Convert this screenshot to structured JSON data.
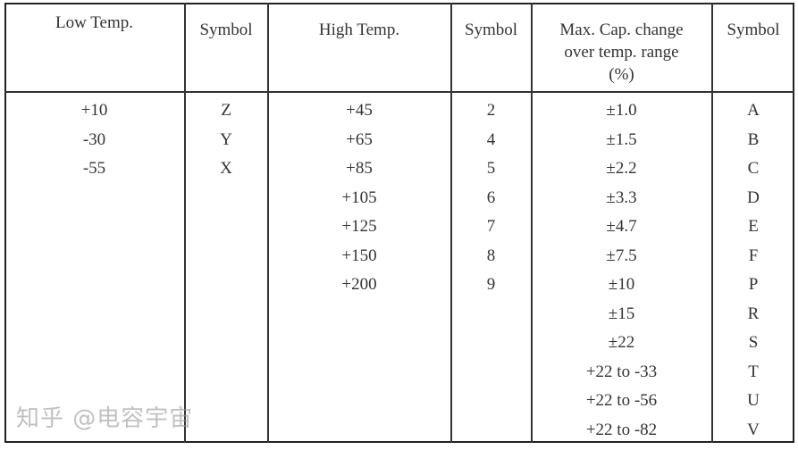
{
  "table": {
    "headers": [
      "Low Temp.",
      "Symbol",
      "High Temp.",
      "Symbol",
      "Max. Cap. change over temp. range (%)",
      "Symbol"
    ],
    "header_lines": {
      "max_cap": [
        "Max. Cap. change",
        "over temp. range",
        "(%)"
      ]
    },
    "low_temp": [
      {
        "value": "+10",
        "symbol": "Z"
      },
      {
        "value": "-30",
        "symbol": "Y"
      },
      {
        "value": "-55",
        "symbol": "X"
      }
    ],
    "high_temp": [
      {
        "value": "+45",
        "symbol": "2"
      },
      {
        "value": "+65",
        "symbol": "4"
      },
      {
        "value": "+85",
        "symbol": "5"
      },
      {
        "value": "+105",
        "symbol": "6"
      },
      {
        "value": "+125",
        "symbol": "7"
      },
      {
        "value": "+150",
        "symbol": "8"
      },
      {
        "value": "+200",
        "symbol": "9"
      }
    ],
    "cap_change": [
      {
        "value": "±1.0",
        "symbol": "A"
      },
      {
        "value": "±1.5",
        "symbol": "B"
      },
      {
        "value": "±2.2",
        "symbol": "C"
      },
      {
        "value": "±3.3",
        "symbol": "D"
      },
      {
        "value": "±4.7",
        "symbol": "E"
      },
      {
        "value": "±7.5",
        "symbol": "F"
      },
      {
        "value": "±10",
        "symbol": "P"
      },
      {
        "value": "±15",
        "symbol": "R"
      },
      {
        "value": "±22",
        "symbol": "S"
      },
      {
        "value": "+22 to -33",
        "symbol": "T"
      },
      {
        "value": "+22 to -56",
        "symbol": "U"
      },
      {
        "value": "+22 to -82",
        "symbol": "V"
      }
    ]
  },
  "watermark": {
    "text": "知乎 @电容宇宙"
  }
}
